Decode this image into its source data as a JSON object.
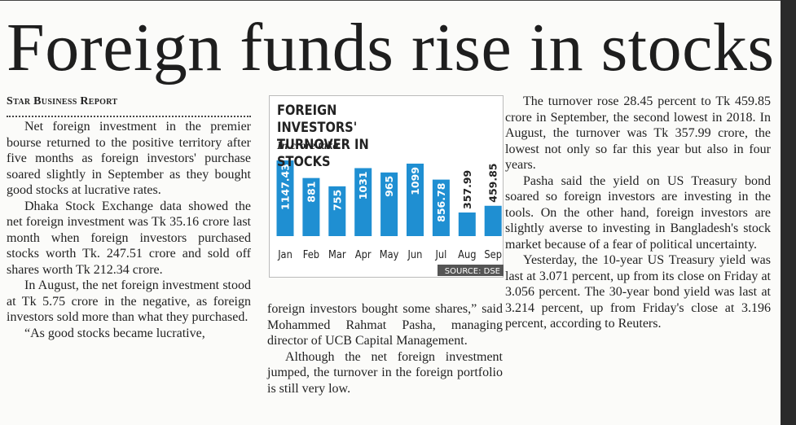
{
  "headline": "Foreign funds rise in stocks",
  "byline": "Star Business Report",
  "columns": [
    [
      "Net foreign investment in the premier bourse returned to the positive territory after five months as foreign investors' purchase soared slightly in September as they bought good stocks at lucrative rates.",
      "Dhaka Stock Exchange data showed the net foreign investment was Tk 35.16 crore last month when foreign investors purchased stocks worth Tk. 247.51 crore and sold off shares worth Tk 212.34 crore.",
      "In August, the net foreign investment stood at Tk 5.75 crore in the negative, as foreign investors sold more than what they purchased.",
      "“As good stocks became lucrative,"
    ],
    [
      "foreign investors bought some shares,” said Mohammed Rahmat Pasha, managing director of UCB Capital Management.",
      "Although the net foreign investment jumped, the turnover in the foreign portfolio is still very low."
    ],
    [
      "The turnover rose 28.45 percent to Tk 459.85 crore in September, the second lowest in 2018. In August, the turnover was Tk 357.99 crore, the lowest not only so far this year but also in four years.",
      "Pasha said the yield on US Treasury bond soared so foreign investors are investing in the tools. On the other hand, foreign investors are slightly averse to investing in Bangladesh's stock market because of a fear of political uncertainty.",
      "Yesterday, the 10-year US Treasury yield was last at 3.071 percent, up from its close on Friday at 3.056 percent. The 30-year bond yield was last at 3.214 percent, up from Friday's close at 3.196 percent, according to Reuters."
    ]
  ],
  "chart_data": {
    "type": "bar",
    "title": "FOREIGN INVESTORS' TURNOVER IN STOCKS",
    "subtitle": "In crore taka",
    "source": "SOURCE: DSE",
    "categories": [
      "Jan",
      "Feb",
      "Mar",
      "Apr",
      "May",
      "Jun",
      "Jul",
      "Aug",
      "Sep"
    ],
    "values": [
      1147.43,
      881,
      755,
      1031,
      965,
      1099,
      856.78,
      357.99,
      459.85
    ],
    "color": "#1f8fd2"
  }
}
